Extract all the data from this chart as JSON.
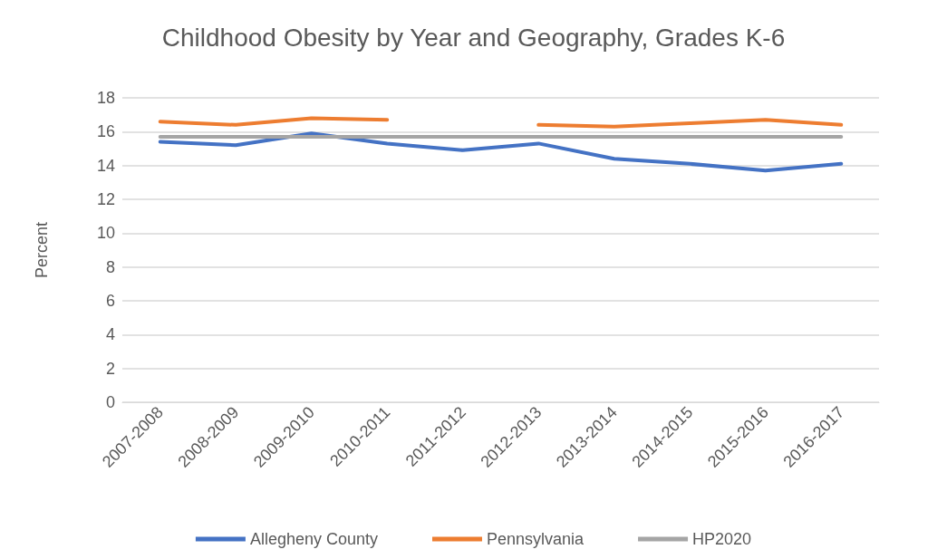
{
  "chart_data": {
    "type": "line",
    "title": "Childhood Obesity by Year and Geography, Grades K-6",
    "ylabel": "Percent",
    "categories": [
      "2007-2008",
      "2008-2009",
      "2009-2010",
      "2010-2011",
      "2011-2012",
      "2012-2013",
      "2013-2014",
      "2014-2015",
      "2015-2016",
      "2016-2017"
    ],
    "series": [
      {
        "name": "Allegheny County",
        "color": "#4472c4",
        "values": [
          15.4,
          15.2,
          15.9,
          15.3,
          14.9,
          15.3,
          14.4,
          14.1,
          13.7,
          14.1
        ]
      },
      {
        "name": "Pennsylvania",
        "color": "#ed7d31",
        "values": [
          16.6,
          16.4,
          16.8,
          16.7,
          null,
          16.4,
          16.3,
          16.5,
          16.7,
          16.4
        ]
      },
      {
        "name": "HP2020",
        "color": "#a5a5a5",
        "values": [
          15.7,
          15.7,
          15.7,
          15.7,
          15.7,
          15.7,
          15.7,
          15.7,
          15.7,
          15.7
        ]
      }
    ],
    "ylim": [
      0,
      18
    ],
    "yticks": [
      0,
      2,
      4,
      6,
      8,
      10,
      12,
      14,
      16,
      18
    ],
    "grid": "y",
    "legend": "bottom",
    "marker": "none",
    "line_style": "solid"
  }
}
